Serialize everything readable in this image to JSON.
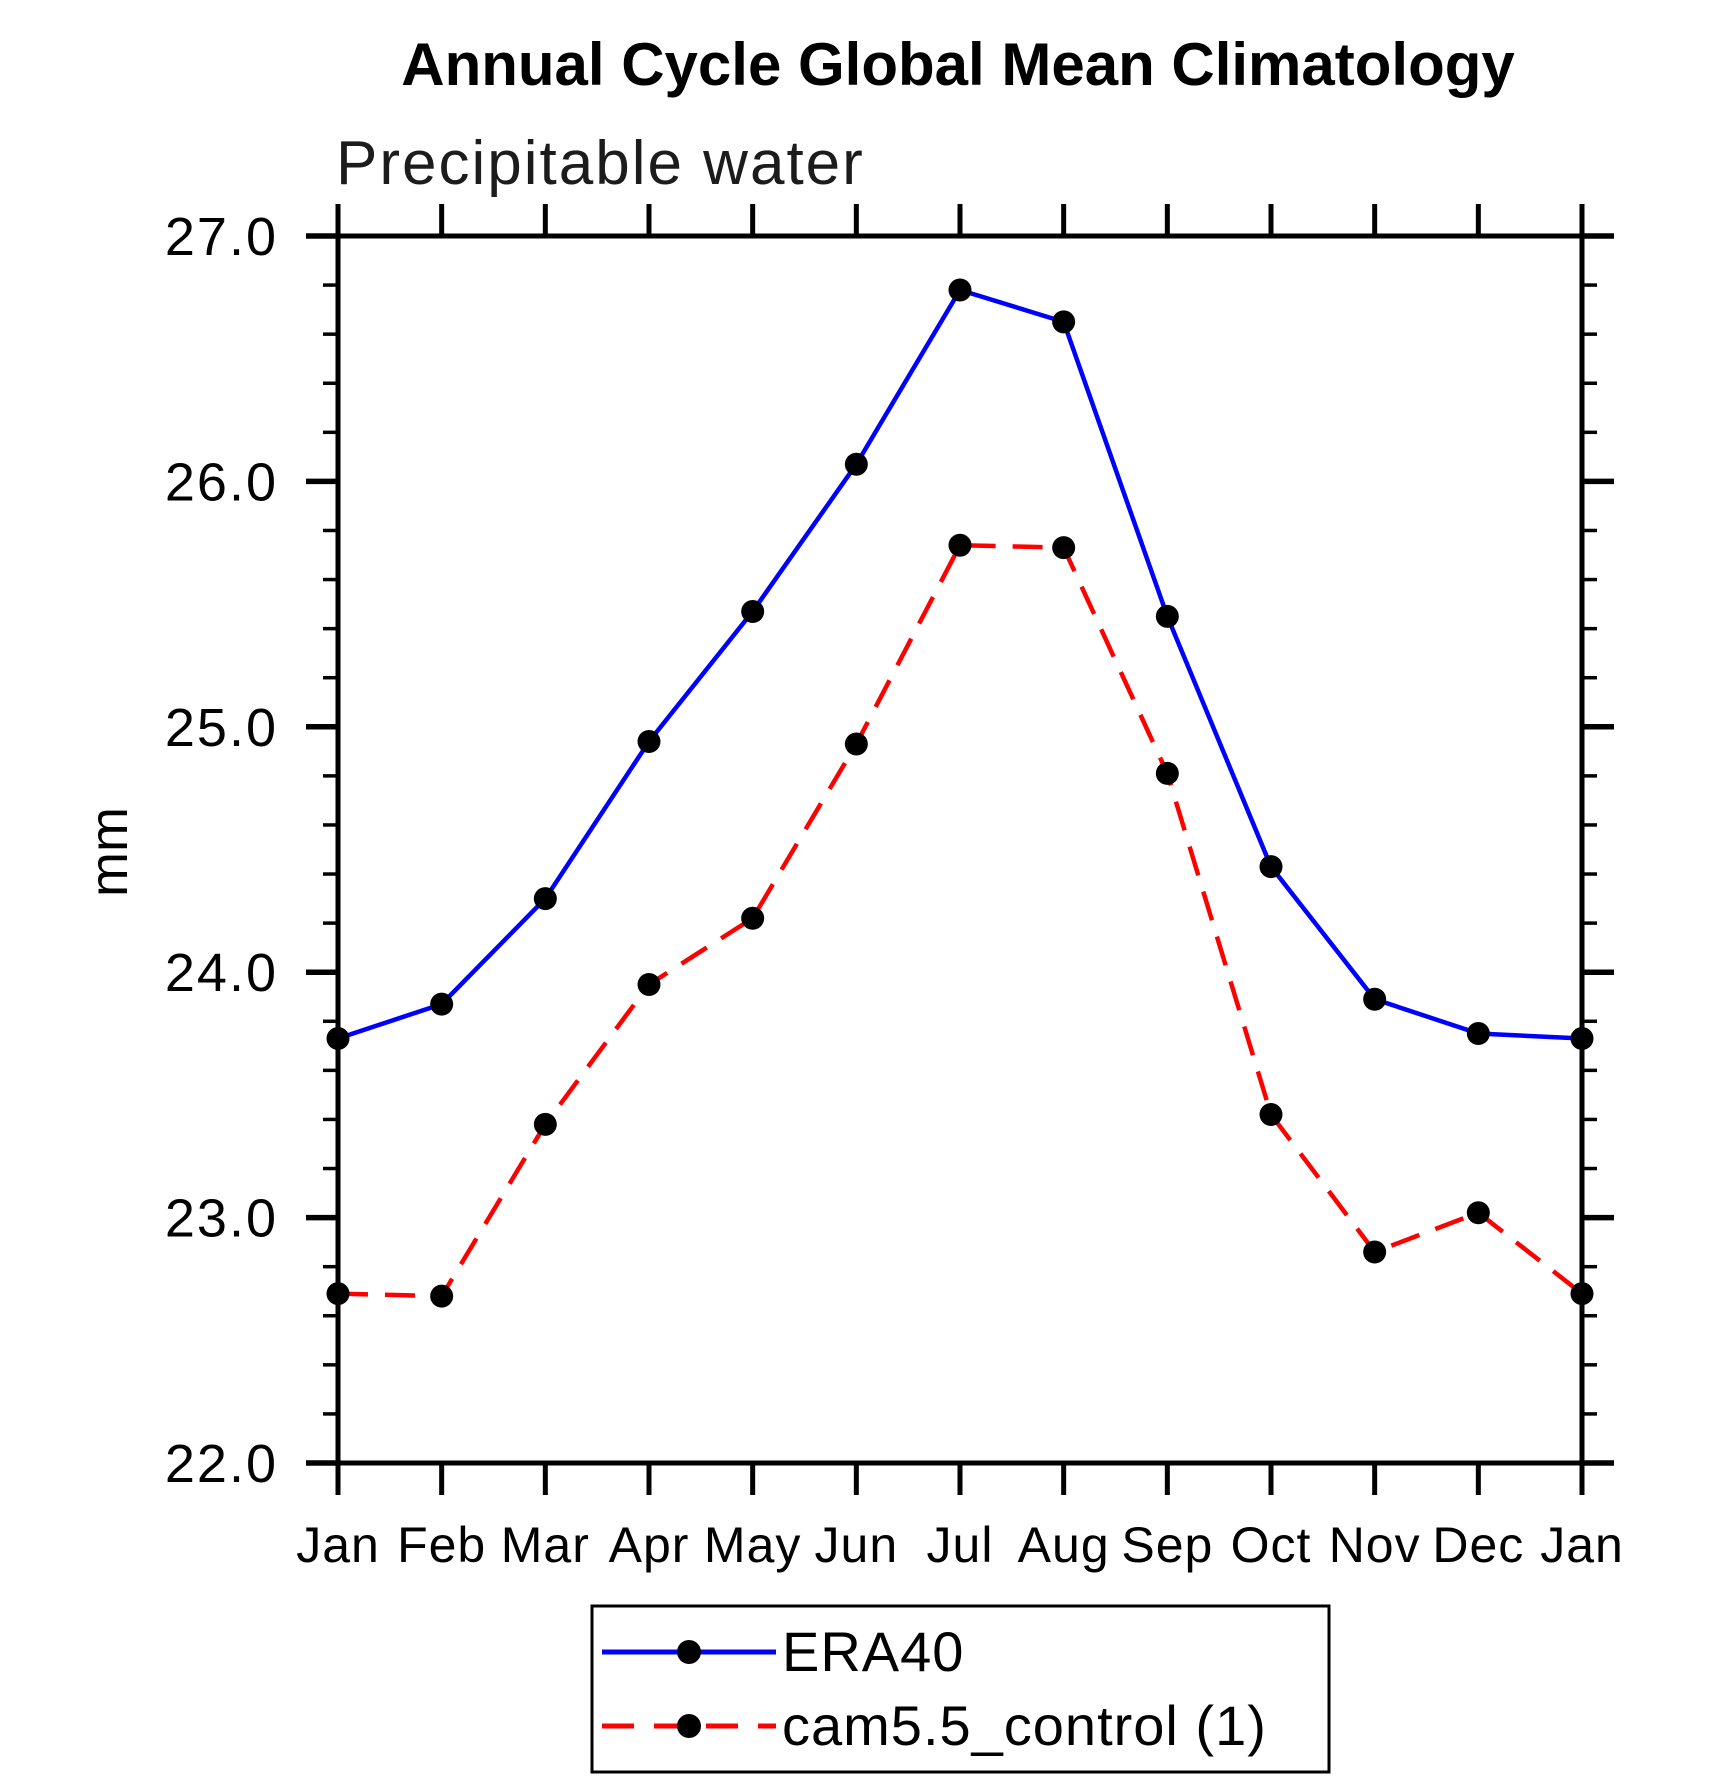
{
  "title": "Annual Cycle Global Mean Climatology",
  "subtitle": "Precipitable water",
  "y_axis_label": "mm",
  "chart_data": {
    "type": "line",
    "title": "Annual Cycle Global Mean Climatology",
    "subtitle": "Precipitable water",
    "ylabel": "mm",
    "categories": [
      "Jan",
      "Feb",
      "Mar",
      "Apr",
      "May",
      "Jun",
      "Jul",
      "Aug",
      "Sep",
      "Oct",
      "Nov",
      "Dec",
      "Jan"
    ],
    "series": [
      {
        "name": "ERA40",
        "color": "#0000ff",
        "line_style": "solid",
        "marker": "black-filled-circle",
        "values": [
          23.73,
          23.87,
          24.3,
          24.94,
          25.47,
          26.07,
          26.78,
          26.65,
          25.45,
          24.43,
          23.89,
          23.75,
          23.73
        ]
      },
      {
        "name": "cam5.5_control (1)",
        "color": "#ff0000",
        "line_style": "dashed",
        "marker": "black-filled-circle",
        "values": [
          22.69,
          22.68,
          23.38,
          23.95,
          24.22,
          24.93,
          25.74,
          25.73,
          24.81,
          23.42,
          22.86,
          23.02,
          22.69
        ]
      }
    ],
    "ylim": [
      22.0,
      27.0
    ],
    "ytick_major_labels": [
      "22.0",
      "23.0",
      "24.0",
      "25.0",
      "26.0",
      "27.0"
    ],
    "ytick_major_step": 1.0,
    "ytick_minor_step": 0.2,
    "grid": false,
    "legend_position": "bottom-center",
    "axis_color": "#000000",
    "marker_color": "#000000"
  },
  "legend": {
    "entries": [
      {
        "label": "ERA40"
      },
      {
        "label": "cam5.5_control (1)"
      }
    ]
  }
}
